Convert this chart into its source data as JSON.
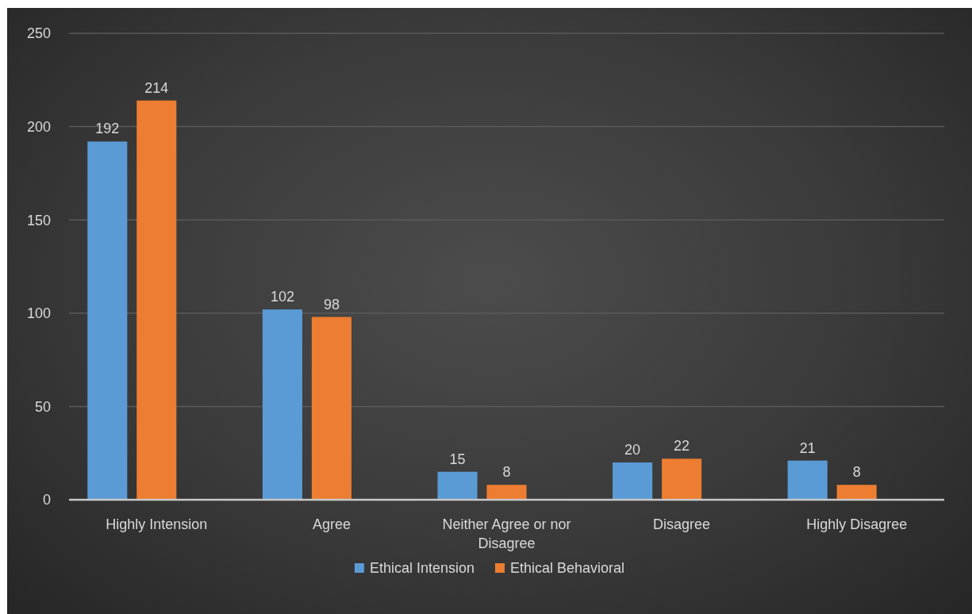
{
  "chart_data": {
    "type": "bar",
    "categories": [
      "Highly Intension",
      "Agree",
      "Neither Agree or nor Disagree",
      "Disagree",
      "Highly Disagree"
    ],
    "series": [
      {
        "name": "Ethical Intension",
        "color": "#5b9bd5",
        "values": [
          192,
          102,
          15,
          20,
          21
        ]
      },
      {
        "name": "Ethical Behavioral",
        "color": "#ed7d31",
        "values": [
          214,
          98,
          8,
          22,
          8
        ]
      }
    ],
    "ylim": [
      0,
      250
    ],
    "yticks": [
      0,
      50,
      100,
      150,
      200,
      250
    ],
    "grid": "y",
    "data_labels": true,
    "legend": "bottom"
  }
}
